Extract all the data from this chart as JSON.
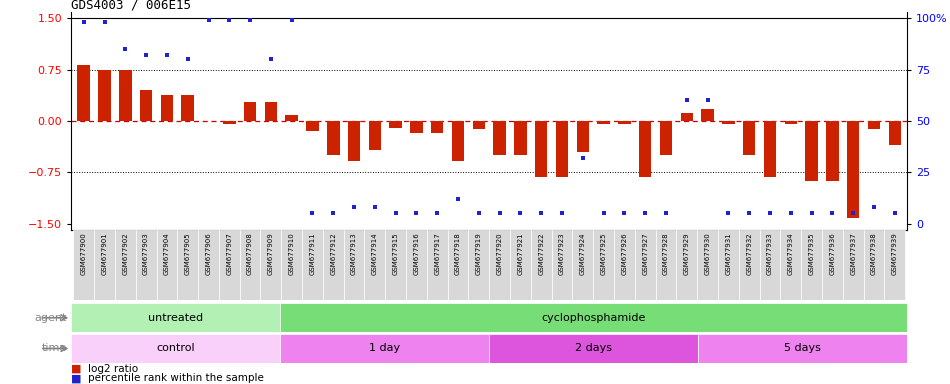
{
  "title": "GDS4003 / 006E15",
  "samples": [
    "GSM677900",
    "GSM677901",
    "GSM677902",
    "GSM677903",
    "GSM677904",
    "GSM677905",
    "GSM677906",
    "GSM677907",
    "GSM677908",
    "GSM677909",
    "GSM677910",
    "GSM677911",
    "GSM677912",
    "GSM677913",
    "GSM677914",
    "GSM677915",
    "GSM677916",
    "GSM677917",
    "GSM677918",
    "GSM677919",
    "GSM677920",
    "GSM677921",
    "GSM677922",
    "GSM677923",
    "GSM677924",
    "GSM677925",
    "GSM677926",
    "GSM677927",
    "GSM677928",
    "GSM677929",
    "GSM677930",
    "GSM677931",
    "GSM677932",
    "GSM677933",
    "GSM677934",
    "GSM677935",
    "GSM677936",
    "GSM677937",
    "GSM677938",
    "GSM677939"
  ],
  "log2_ratio": [
    0.82,
    0.75,
    0.75,
    0.45,
    0.38,
    0.38,
    0.0,
    -0.05,
    0.28,
    0.28,
    0.08,
    -0.15,
    -0.5,
    -0.58,
    -0.42,
    -0.1,
    -0.18,
    -0.18,
    -0.58,
    -0.12,
    -0.5,
    -0.5,
    -0.82,
    -0.82,
    -0.45,
    -0.05,
    -0.05,
    -0.82,
    -0.5,
    0.12,
    0.18,
    -0.05,
    -0.5,
    -0.82,
    -0.05,
    -0.88,
    -0.88,
    -1.42,
    -0.12,
    -0.35
  ],
  "percentile": [
    98,
    98,
    85,
    82,
    82,
    80,
    99,
    99,
    99,
    80,
    99,
    5,
    5,
    8,
    8,
    5,
    5,
    5,
    12,
    5,
    5,
    5,
    5,
    5,
    32,
    5,
    5,
    5,
    5,
    60,
    60,
    5,
    5,
    5,
    5,
    5,
    5,
    5,
    8,
    5
  ],
  "agent_groups": [
    {
      "label": "untreated",
      "start": 0,
      "end": 10,
      "color": "#b3f0b3"
    },
    {
      "label": "cyclophosphamide",
      "start": 10,
      "end": 40,
      "color": "#77dd77"
    }
  ],
  "time_groups": [
    {
      "label": "control",
      "start": 0,
      "end": 10,
      "color": "#f9d0f9"
    },
    {
      "label": "1 day",
      "start": 10,
      "end": 20,
      "color": "#ee82ee"
    },
    {
      "label": "2 days",
      "start": 20,
      "end": 30,
      "color": "#dd55dd"
    },
    {
      "label": "5 days",
      "start": 30,
      "end": 40,
      "color": "#ee82ee"
    }
  ],
  "bar_color": "#cc2200",
  "dot_color": "#2222cc",
  "dashed_line_color": "#cc0000",
  "ylim": [
    -1.6,
    1.6
  ],
  "yticks_left": [
    -1.5,
    -0.75,
    0.0,
    0.75,
    1.5
  ],
  "yticks_right_perc": [
    0,
    25,
    50,
    75,
    100
  ],
  "agent_label_color": "#888888",
  "time_label_color": "#888888"
}
